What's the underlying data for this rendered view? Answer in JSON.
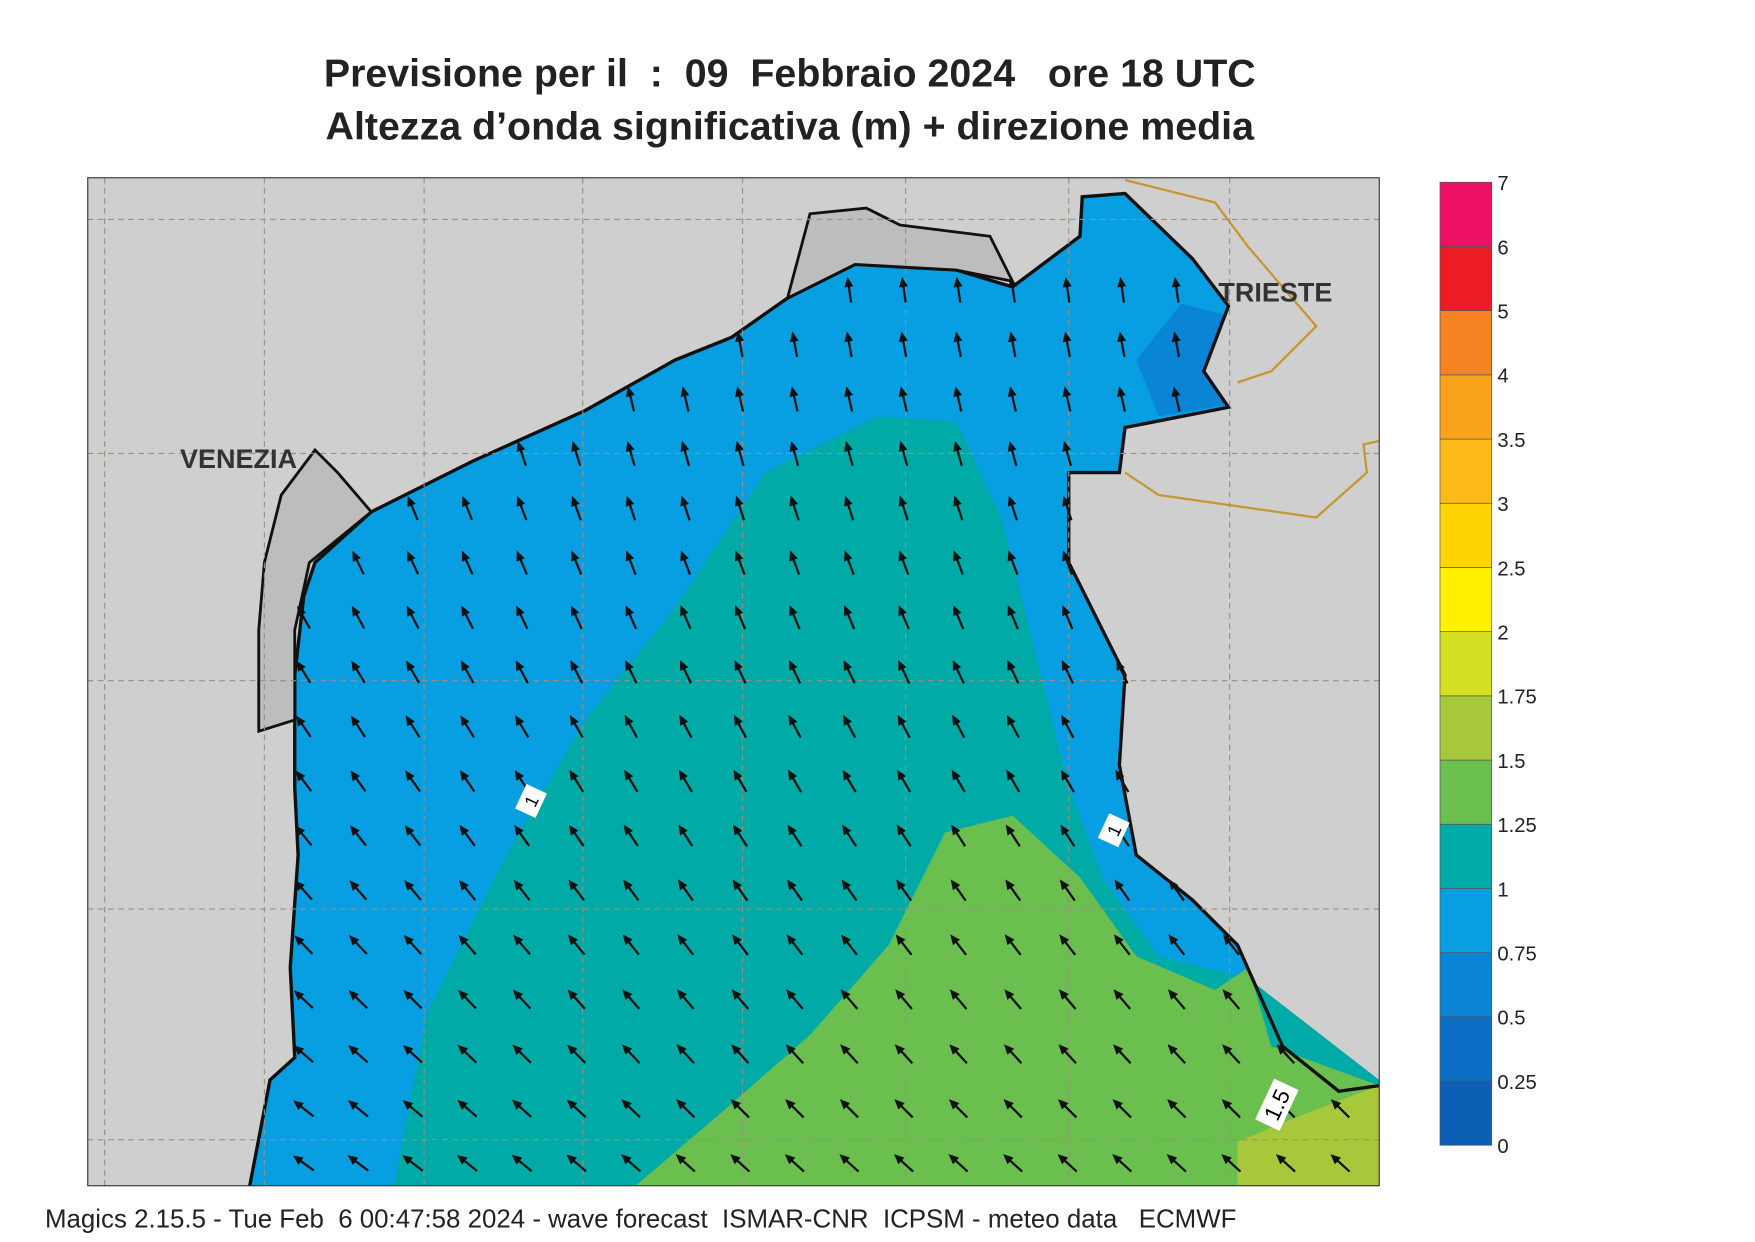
{
  "header": {
    "title": "Previsione per il  :  09  Febbraio 2024   ore 18 UTC",
    "subtitle": "Altezza d’onda significativa (m) + direzione media"
  },
  "map": {
    "places": [
      {
        "label": "VENEZIA"
      },
      {
        "label": "TRIESTE"
      }
    ],
    "contour_labels": [
      "1",
      "1",
      "1.5"
    ]
  },
  "colorbar": {
    "labels": [
      "0",
      "0.25",
      "0.5",
      "0.75",
      "1",
      "1.25",
      "1.5",
      "1.75",
      "2",
      "2.5",
      "3",
      "3.5",
      "4",
      "5",
      "6",
      "7"
    ],
    "colors": [
      "#0b5fb4",
      "#0a6fc4",
      "#0a84d4",
      "#089ee2",
      "#00aaa6",
      "#6bbf4e",
      "#a8c83c",
      "#d4e021",
      "#fff200",
      "#ffd400",
      "#fdb916",
      "#fba21b",
      "#f58220",
      "#ec1c24",
      "#ec1164"
    ]
  },
  "footer": "Magics 2.15.5 - Tue Feb  6 00:47:58 2024 - wave forecast  ISMAR-CNR  ICPSM - meteo data   ECMWF"
}
